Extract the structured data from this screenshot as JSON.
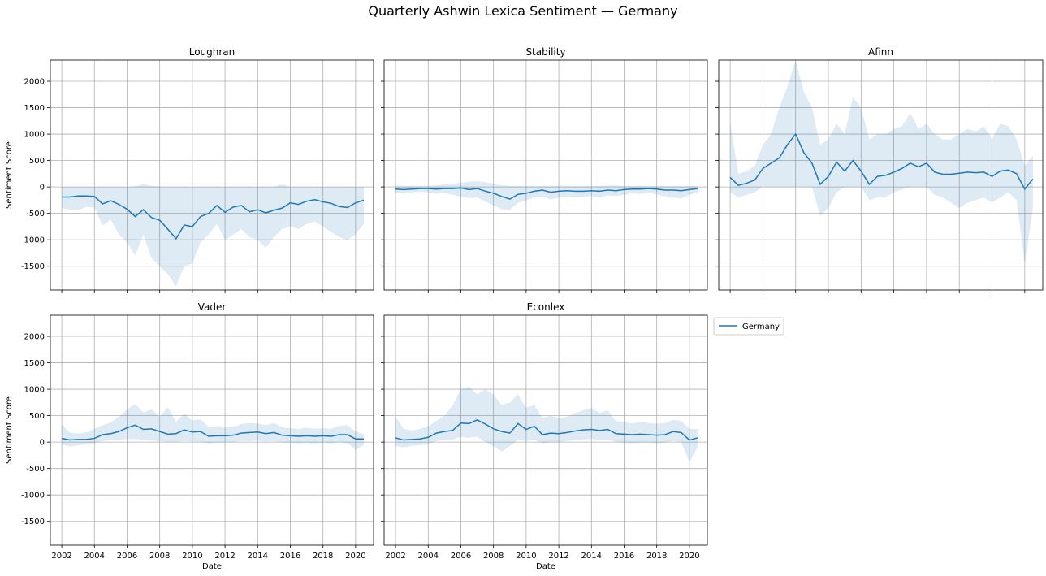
{
  "figure_title": "Quarterly Ashwin Lexica Sentiment — Germany",
  "chart_data": {
    "type": "line",
    "title": "Quarterly Ashwin Lexica Sentiment — Germany",
    "xlabel": "Date",
    "ylabel": "Sentiment Score",
    "xlim": [
      2001.3,
      2021.1
    ],
    "ylim": [
      -1950,
      2400
    ],
    "x_ticks": [
      2002,
      2004,
      2006,
      2008,
      2010,
      2012,
      2014,
      2016,
      2018,
      2020
    ],
    "y_ticks": [
      -1500,
      -1000,
      -500,
      0,
      500,
      1000,
      1500,
      2000
    ],
    "grid": true,
    "legend": {
      "entries": [
        "Germany"
      ],
      "placement": "right of bottom row"
    },
    "series_color": "#1f77b4",
    "band_color": "#1f77b4",
    "panels": [
      {
        "title": "Loughran",
        "x": [
          2002,
          2002.5,
          2003,
          2003.5,
          2004,
          2004.5,
          2005,
          2005.5,
          2006,
          2006.5,
          2007,
          2007.5,
          2008,
          2008.5,
          2009,
          2009.5,
          2010,
          2010.5,
          2011,
          2011.5,
          2012,
          2012.5,
          2013,
          2013.5,
          2014,
          2014.5,
          2015,
          2015.5,
          2016,
          2016.5,
          2017,
          2017.5,
          2018,
          2018.5,
          2019,
          2019.5,
          2020,
          2020.5
        ],
        "values": [
          -190,
          -190,
          -170,
          -170,
          -180,
          -320,
          -260,
          -330,
          -420,
          -560,
          -430,
          -580,
          -630,
          -800,
          -980,
          -720,
          -750,
          -560,
          -500,
          -350,
          -480,
          -380,
          -350,
          -470,
          -430,
          -490,
          -440,
          -400,
          -300,
          -330,
          -270,
          -240,
          -280,
          -310,
          -370,
          -390,
          -300,
          -250
        ],
        "lower": [
          -400,
          -430,
          -440,
          -380,
          -390,
          -730,
          -620,
          -900,
          -1050,
          -1300,
          -900,
          -1350,
          -1500,
          -1650,
          -1880,
          -1500,
          -1450,
          -1050,
          -900,
          -700,
          -1000,
          -900,
          -800,
          -950,
          -1000,
          -1150,
          -950,
          -800,
          -750,
          -800,
          -700,
          -650,
          -750,
          -850,
          -950,
          -1000,
          -900,
          -700
        ],
        "upper": [
          0,
          0,
          0,
          0,
          0,
          0,
          0,
          0,
          0,
          10,
          50,
          20,
          10,
          0,
          0,
          0,
          0,
          0,
          0,
          0,
          0,
          0,
          0,
          0,
          0,
          0,
          0,
          50,
          0,
          0,
          0,
          0,
          0,
          0,
          0,
          0,
          0,
          0
        ]
      },
      {
        "title": "Stability",
        "x": [
          2002,
          2002.5,
          2003,
          2003.5,
          2004,
          2004.5,
          2005,
          2005.5,
          2006,
          2006.5,
          2007,
          2007.5,
          2008,
          2008.5,
          2009,
          2009.5,
          2010,
          2010.5,
          2011,
          2011.5,
          2012,
          2012.5,
          2013,
          2013.5,
          2014,
          2014.5,
          2015,
          2015.5,
          2016,
          2016.5,
          2017,
          2017.5,
          2018,
          2018.5,
          2019,
          2019.5,
          2020,
          2020.5
        ],
        "values": [
          -40,
          -50,
          -40,
          -30,
          -30,
          -40,
          -30,
          -30,
          -20,
          -50,
          -30,
          -80,
          -120,
          -180,
          -230,
          -140,
          -120,
          -80,
          -60,
          -100,
          -80,
          -70,
          -80,
          -80,
          -70,
          -80,
          -60,
          -70,
          -50,
          -40,
          -40,
          -30,
          -40,
          -60,
          -60,
          -70,
          -50,
          -30
        ],
        "lower": [
          -120,
          -110,
          -100,
          -90,
          -100,
          -130,
          -110,
          -150,
          -180,
          -210,
          -200,
          -280,
          -350,
          -420,
          -430,
          -300,
          -260,
          -200,
          -180,
          -240,
          -200,
          -180,
          -200,
          -190,
          -170,
          -200,
          -160,
          -170,
          -150,
          -120,
          -130,
          -110,
          -140,
          -180,
          -200,
          -220,
          -150,
          -100
        ],
        "upper": [
          30,
          20,
          20,
          20,
          20,
          30,
          50,
          60,
          80,
          100,
          110,
          90,
          60,
          30,
          20,
          20,
          20,
          20,
          20,
          20,
          20,
          20,
          20,
          20,
          20,
          20,
          30,
          30,
          20,
          20,
          20,
          20,
          20,
          20,
          20,
          20,
          20,
          20
        ]
      },
      {
        "title": "Afinn",
        "x": [
          2002,
          2002.5,
          2003,
          2003.5,
          2004,
          2004.5,
          2005,
          2005.5,
          2006,
          2006.5,
          2007,
          2007.5,
          2008,
          2008.5,
          2009,
          2009.5,
          2010,
          2010.5,
          2011,
          2011.5,
          2012,
          2012.5,
          2013,
          2013.5,
          2014,
          2014.5,
          2015,
          2015.5,
          2016,
          2016.5,
          2017,
          2017.5,
          2018,
          2018.5,
          2019,
          2019.5,
          2020,
          2020.5
        ],
        "values": [
          180,
          30,
          70,
          130,
          350,
          450,
          550,
          800,
          1000,
          650,
          450,
          50,
          200,
          470,
          300,
          500,
          300,
          50,
          200,
          220,
          280,
          350,
          450,
          380,
          450,
          280,
          240,
          240,
          260,
          280,
          270,
          280,
          200,
          300,
          320,
          250,
          -40,
          150
        ],
        "lower": [
          -100,
          -200,
          -150,
          -100,
          0,
          0,
          0,
          0,
          0,
          0,
          0,
          -550,
          -400,
          -100,
          0,
          0,
          0,
          -250,
          -200,
          -200,
          -100,
          -50,
          0,
          0,
          0,
          -150,
          -200,
          -300,
          -400,
          -300,
          -250,
          -200,
          -300,
          -200,
          -100,
          -250,
          -1450,
          -400
        ],
        "upper": [
          1200,
          250,
          300,
          400,
          800,
          1000,
          1500,
          1900,
          2400,
          1800,
          1500,
          800,
          900,
          1200,
          1000,
          1700,
          1500,
          900,
          1000,
          1000,
          1100,
          1150,
          1400,
          1100,
          1200,
          1000,
          900,
          900,
          1000,
          1100,
          1050,
          1150,
          900,
          1200,
          1150,
          900,
          400,
          600
        ]
      },
      {
        "title": "Vader",
        "x": [
          2002,
          2002.5,
          2003,
          2003.5,
          2004,
          2004.5,
          2005,
          2005.5,
          2006,
          2006.5,
          2007,
          2007.5,
          2008,
          2008.5,
          2009,
          2009.5,
          2010,
          2010.5,
          2011,
          2011.5,
          2012,
          2012.5,
          2013,
          2013.5,
          2014,
          2014.5,
          2015,
          2015.5,
          2016,
          2016.5,
          2017,
          2017.5,
          2018,
          2018.5,
          2019,
          2019.5,
          2020,
          2020.5
        ],
        "values": [
          70,
          40,
          50,
          50,
          70,
          140,
          160,
          200,
          270,
          320,
          240,
          250,
          200,
          150,
          160,
          230,
          190,
          200,
          110,
          120,
          120,
          130,
          170,
          180,
          190,
          160,
          180,
          130,
          120,
          110,
          120,
          110,
          120,
          110,
          140,
          140,
          60,
          60
        ],
        "lower": [
          -50,
          -80,
          -60,
          -40,
          -20,
          20,
          40,
          40,
          60,
          60,
          40,
          30,
          20,
          0,
          0,
          20,
          10,
          10,
          -20,
          -10,
          -10,
          0,
          20,
          20,
          30,
          10,
          20,
          0,
          -10,
          -20,
          -10,
          -20,
          -10,
          -20,
          0,
          -20,
          -150,
          -60
        ],
        "upper": [
          330,
          180,
          160,
          180,
          250,
          320,
          370,
          480,
          620,
          720,
          560,
          620,
          480,
          660,
          380,
          540,
          410,
          430,
          280,
          300,
          280,
          290,
          340,
          360,
          350,
          320,
          360,
          280,
          260,
          250,
          270,
          250,
          260,
          250,
          310,
          320,
          200,
          150
        ]
      },
      {
        "title": "Econlex",
        "x": [
          2002,
          2002.5,
          2003,
          2003.5,
          2004,
          2004.5,
          2005,
          2005.5,
          2006,
          2006.5,
          2007,
          2007.5,
          2008,
          2008.5,
          2009,
          2009.5,
          2010,
          2010.5,
          2011,
          2011.5,
          2012,
          2012.5,
          2013,
          2013.5,
          2014,
          2014.5,
          2015,
          2015.5,
          2016,
          2016.5,
          2017,
          2017.5,
          2018,
          2018.5,
          2019,
          2019.5,
          2020,
          2020.5
        ],
        "values": [
          80,
          40,
          50,
          60,
          90,
          170,
          200,
          220,
          360,
          350,
          420,
          340,
          250,
          200,
          170,
          350,
          240,
          300,
          140,
          170,
          160,
          180,
          210,
          230,
          240,
          220,
          240,
          160,
          150,
          140,
          150,
          140,
          130,
          140,
          200,
          180,
          40,
          80
        ],
        "lower": [
          -80,
          -100,
          -70,
          -60,
          -40,
          20,
          40,
          50,
          100,
          80,
          100,
          0,
          -80,
          -180,
          -80,
          40,
          20,
          40,
          -20,
          0,
          0,
          20,
          40,
          50,
          60,
          40,
          50,
          0,
          -10,
          -20,
          -10,
          -10,
          -20,
          -10,
          20,
          0,
          -380,
          -100
        ],
        "upper": [
          480,
          250,
          220,
          250,
          300,
          400,
          500,
          700,
          1000,
          1050,
          900,
          1000,
          900,
          700,
          750,
          900,
          650,
          700,
          450,
          500,
          450,
          480,
          550,
          600,
          650,
          550,
          600,
          400,
          380,
          350,
          380,
          360,
          350,
          360,
          420,
          400,
          250,
          250
        ]
      }
    ]
  }
}
